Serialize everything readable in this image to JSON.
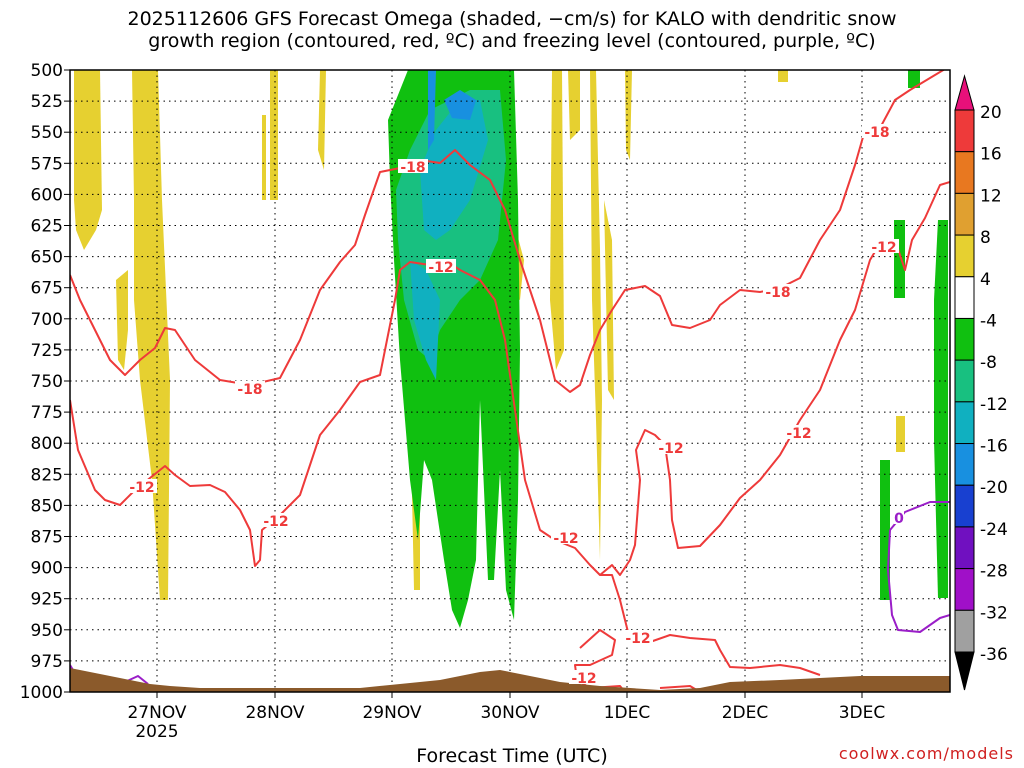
{
  "title_line1": "2025112606 GFS Forecast Omega (shaded, −cm/s) for KALO with dendritic snow",
  "title_line2": "growth region (contoured, red, ºC) and freezing level (contoured, purple, ºC)",
  "xlabel": "Forecast Time (UTC)",
  "credit": "coolwx.com/models",
  "colors": {
    "dgz_contour": "#ee3a3a",
    "freezing_contour": "#9a1ec8",
    "ground": "#8b5a2b"
  },
  "chart_data": {
    "type": "heatmap",
    "title": "2025112606 GFS Forecast Omega (shaded, −cm/s) for KALO with dendritic snow growth region (contoured, red, ºC) and freezing level (contoured, purple, ºC)",
    "xlabel": "Forecast Time (UTC)",
    "ylabel": "",
    "y_axis": {
      "ticks": [
        "500",
        "525",
        "550",
        "575",
        "600",
        "625",
        "650",
        "675",
        "700",
        "725",
        "750",
        "775",
        "800",
        "825",
        "850",
        "875",
        "900",
        "925",
        "950",
        "975",
        "1000"
      ],
      "range": [
        1000,
        500
      ],
      "inverted": true
    },
    "x_axis": {
      "ticks": [
        "27NOV\n2025",
        "28NOV",
        "29NOV",
        "30NOV",
        "1DEC",
        "2DEC",
        "3DEC"
      ],
      "range": [
        "2025-11-26 06Z",
        "2025-12-03 18Z"
      ]
    },
    "grid": true,
    "colorbar": {
      "labels": [
        "20",
        "16",
        "12",
        "8",
        "4",
        "-4",
        "-8",
        "-12",
        "-16",
        "-20",
        "-24",
        "-28",
        "-32",
        "-36"
      ],
      "colors": [
        "#e8107a",
        "#ee3a3a",
        "#e87820",
        "#e0a030",
        "#e6d030",
        "#ffffff",
        "#10c010",
        "#18c080",
        "#10b0c0",
        "#1890e0",
        "#1840d0",
        "#7010c0",
        "#a010c8",
        "#a0a0a0",
        "#000000"
      ]
    },
    "contour_labels": [
      {
        "value": "-18",
        "color": "red"
      },
      {
        "value": "-12",
        "color": "red"
      },
      {
        "value": "0",
        "color": "purple"
      }
    ]
  }
}
